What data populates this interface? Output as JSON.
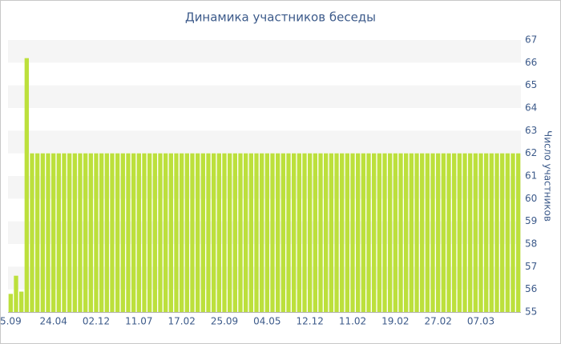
{
  "chart_data": {
    "type": "bar",
    "title": "Динамика участников беседы",
    "y_label": "Число участников",
    "categories": [
      "5.09",
      null,
      null,
      null,
      null,
      null,
      null,
      null,
      "24.04",
      null,
      null,
      null,
      null,
      null,
      null,
      null,
      "02.12",
      null,
      null,
      null,
      null,
      null,
      null,
      null,
      "11.07",
      null,
      null,
      null,
      null,
      null,
      null,
      null,
      "17.02",
      null,
      null,
      null,
      null,
      null,
      null,
      null,
      "25.09",
      null,
      null,
      null,
      null,
      null,
      null,
      null,
      "04.05",
      null,
      null,
      null,
      null,
      null,
      null,
      null,
      "12.12",
      null,
      null,
      null,
      null,
      null,
      null,
      null,
      "11.02",
      null,
      null,
      null,
      null,
      null,
      null,
      null,
      "19.02",
      null,
      null,
      null,
      null,
      null,
      null,
      null,
      "27.02",
      null,
      null,
      null,
      null,
      null,
      null,
      null,
      "07.03",
      null,
      null,
      null,
      null,
      null,
      null,
      null
    ],
    "values": [
      55.8,
      56.6,
      55.9,
      66.2,
      62,
      62,
      62,
      62,
      62,
      62,
      62,
      62,
      62,
      62,
      62,
      62,
      62,
      62,
      62,
      62,
      62,
      62,
      62,
      62,
      62,
      62,
      62,
      62,
      62,
      62,
      62,
      62,
      62,
      62,
      62,
      62,
      62,
      62,
      62,
      62,
      62,
      62,
      62,
      62,
      62,
      62,
      62,
      62,
      62,
      62,
      62,
      62,
      62,
      62,
      62,
      62,
      62,
      62,
      62,
      62,
      62,
      62,
      62,
      62,
      62,
      62,
      62,
      62,
      62,
      62,
      62,
      62,
      62,
      62,
      62,
      62,
      62,
      62,
      62,
      62,
      62,
      62,
      62,
      62,
      62,
      62,
      62,
      62,
      62,
      62,
      62,
      62,
      62,
      62,
      62,
      62
    ],
    "color": "#bce03c",
    "ylim": [
      55,
      67
    ],
    "yticks": [
      55,
      56,
      57,
      58,
      59,
      60,
      61,
      62,
      63,
      64,
      65,
      66,
      67
    ],
    "grid": true
  }
}
